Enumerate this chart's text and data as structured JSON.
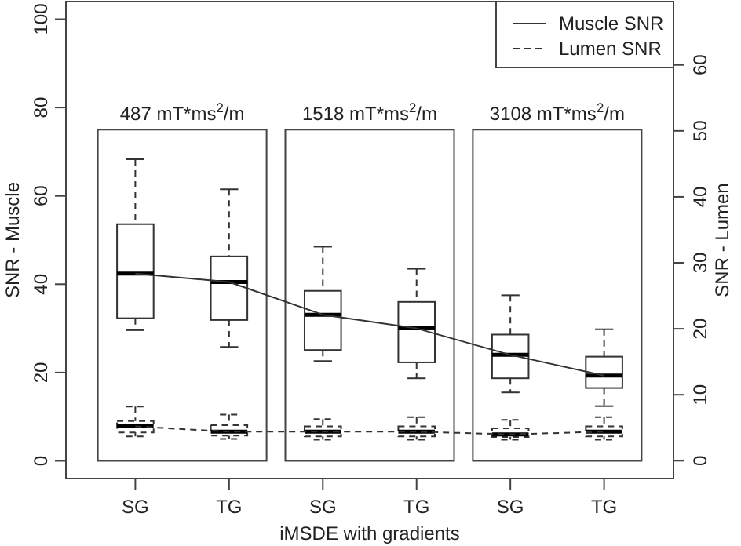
{
  "chart_data": {
    "type": "box",
    "xlabel": "iMSDE with gradients",
    "ylabel": "SNR - Muscle",
    "y2label": "SNR - Lumen",
    "categories": [
      "SG",
      "TG",
      "SG",
      "TG",
      "SG",
      "TG"
    ],
    "ylim": [
      -4,
      104
    ],
    "yticks": [
      0,
      20,
      40,
      60,
      80,
      100
    ],
    "y2lim": [
      -2.7,
      69.6
    ],
    "y2ticks": [
      0,
      10,
      20,
      30,
      40,
      50,
      60
    ],
    "legend": "top right",
    "annotations": [
      "487 mT*ms$^{2}$/m",
      "1518 mT*ms$^{2}$/m",
      "3108 mT*ms$^{2}$/m"
    ],
    "series": [
      {
        "axis": "y",
        "line_style": "solid",
        "boxes": [
          {
            "low": 29.6,
            "q1": 32.3,
            "median": 42.4,
            "q3": 53.6,
            "high": 68.3
          },
          {
            "low": 25.8,
            "q1": 31.9,
            "median": 40.5,
            "q3": 46.3,
            "high": 61.5
          },
          {
            "low": 22.6,
            "q1": 25.1,
            "median": 33.1,
            "q3": 38.5,
            "high": 48.5
          },
          {
            "low": 18.7,
            "q1": 22.3,
            "median": 30.0,
            "q3": 36.0,
            "high": 43.5
          },
          {
            "low": 15.5,
            "q1": 18.7,
            "median": 24.0,
            "q3": 28.6,
            "high": 37.5
          },
          {
            "low": 12.4,
            "q1": 16.5,
            "median": 19.3,
            "q3": 23.6,
            "high": 29.8
          }
        ]
      },
      {
        "axis": "y2",
        "line_style": "dashed",
        "boxes": [
          {
            "low": 3.7,
            "q1": 4.3,
            "median": 5.2,
            "q3": 6.0,
            "high": 8.2
          },
          {
            "low": 3.3,
            "q1": 3.8,
            "median": 4.4,
            "q3": 5.4,
            "high": 7.0
          },
          {
            "low": 3.2,
            "q1": 3.7,
            "median": 4.4,
            "q3": 5.2,
            "high": 6.3
          },
          {
            "low": 3.2,
            "q1": 3.7,
            "median": 4.4,
            "q3": 5.2,
            "high": 6.6
          },
          {
            "low": 3.2,
            "q1": 3.6,
            "median": 4.0,
            "q3": 4.9,
            "high": 6.2
          },
          {
            "low": 3.2,
            "q1": 3.7,
            "median": 4.4,
            "q3": 5.2,
            "high": 6.6
          }
        ]
      },
      {
        "type": "line",
        "name": "Muscle SNR",
        "axis": "y",
        "color": "#333333",
        "line_style": "solid",
        "values": [
          42.4,
          40.5,
          33.1,
          30.0,
          24.0,
          19.3
        ]
      },
      {
        "type": "line",
        "name": "Lumen SNR",
        "axis": "y2",
        "color": "#333333",
        "line_style": "dashed",
        "values": [
          5.2,
          4.4,
          4.4,
          4.4,
          4.0,
          4.4
        ]
      }
    ]
  }
}
